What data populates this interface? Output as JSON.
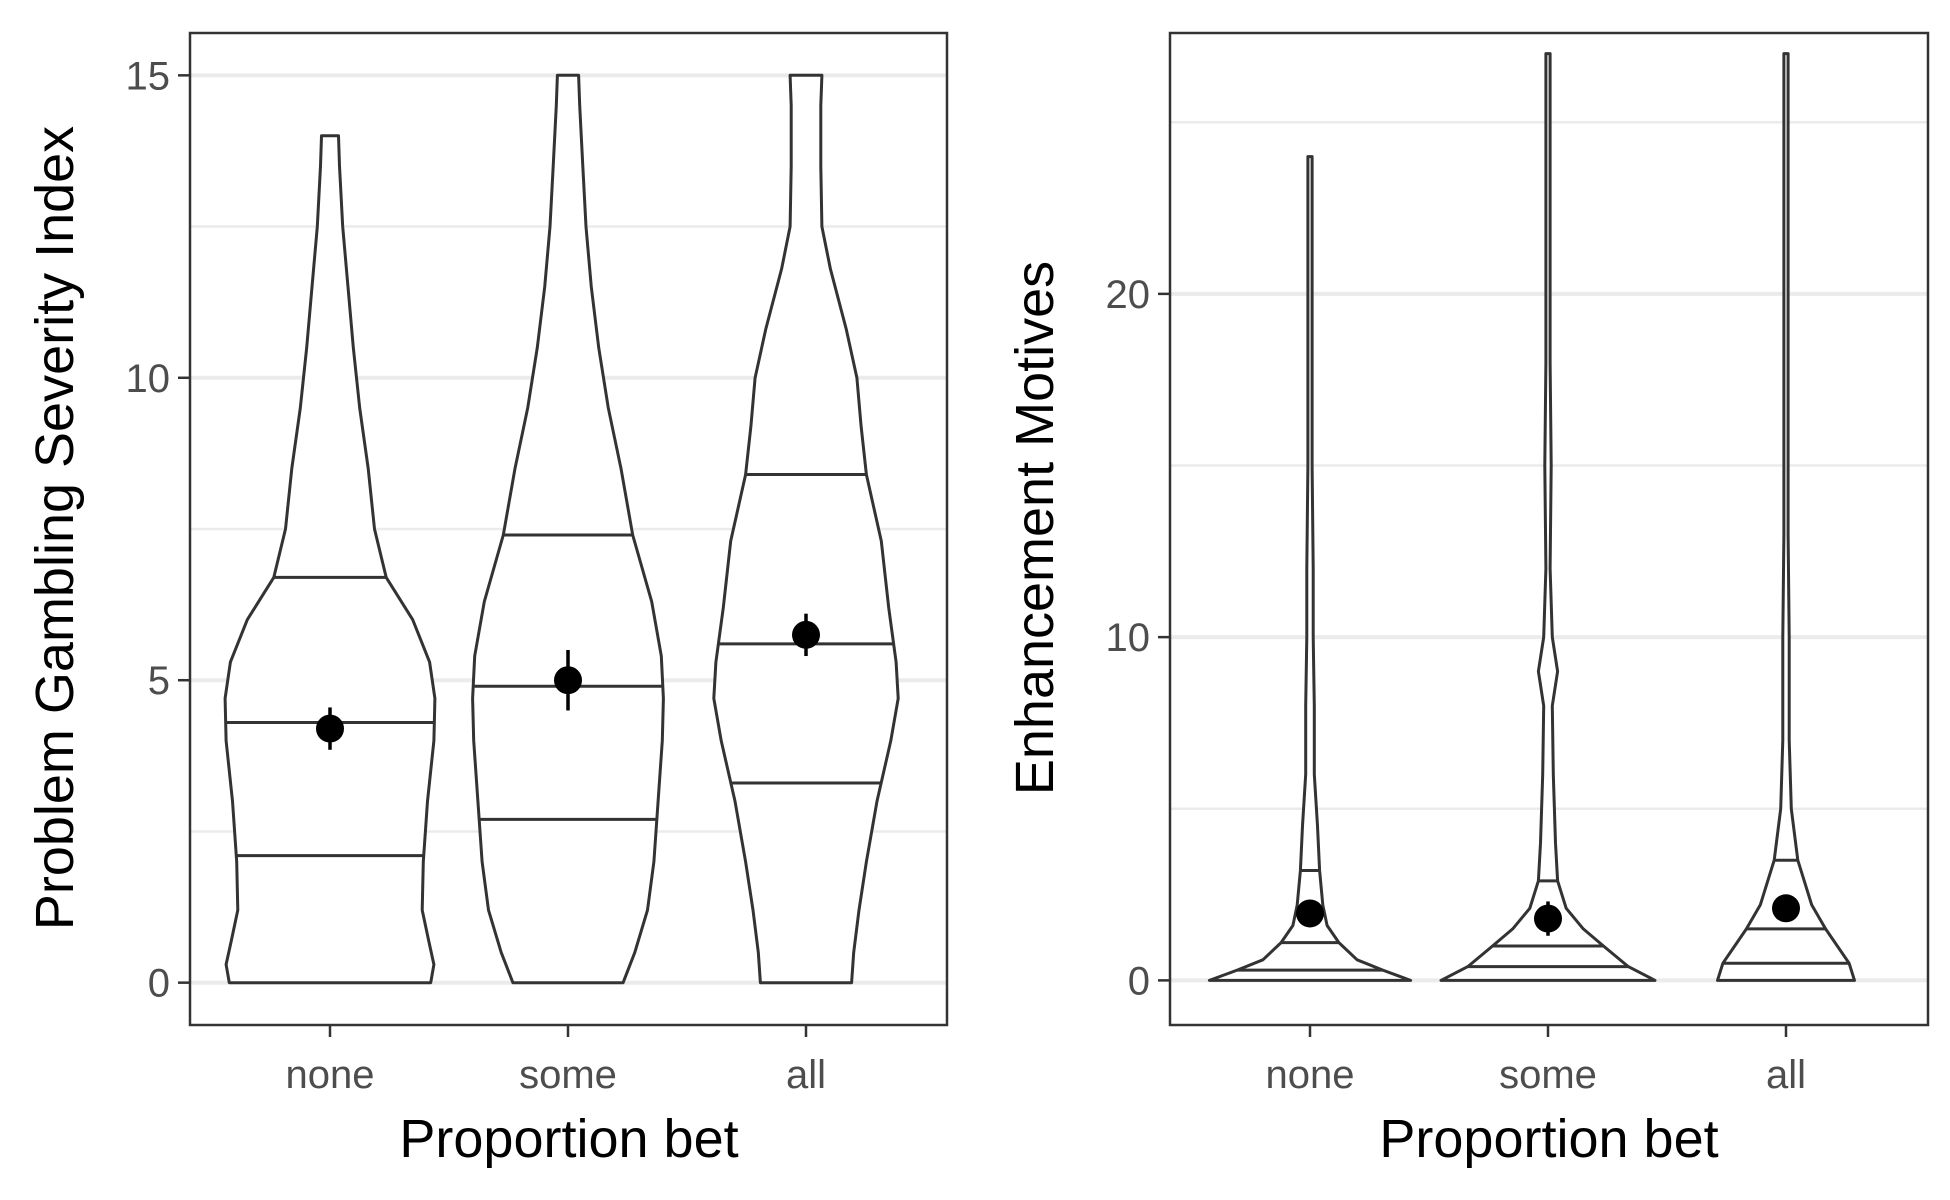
{
  "chart_data": [
    {
      "type": "violin",
      "xlabel": "Proportion bet",
      "ylabel": "Problem Gambling Severity Index",
      "categories": [
        "none",
        "some",
        "all"
      ],
      "ylim": [
        -0.7,
        15.7
      ],
      "yticks": [
        0,
        5,
        10,
        15
      ],
      "yticks_minor": [
        2.5,
        7.5,
        12.5
      ],
      "grid": true,
      "quantiles": [
        0.25,
        0.5,
        0.75
      ],
      "groups": [
        {
          "category": "none",
          "min": 0,
          "max": 14,
          "quantiles": [
            2.1,
            4.3,
            6.7
          ],
          "mean": 4.2,
          "ci": [
            3.85,
            4.55
          ],
          "density_profile": [
            [
              0,
              0.95
            ],
            [
              0.3,
              0.98
            ],
            [
              0.7,
              0.93
            ],
            [
              1.2,
              0.87
            ],
            [
              2.0,
              0.88
            ],
            [
              3.0,
              0.92
            ],
            [
              4.0,
              0.98
            ],
            [
              4.7,
              0.99
            ],
            [
              5.3,
              0.94
            ],
            [
              6.0,
              0.78
            ],
            [
              6.7,
              0.53
            ],
            [
              7.5,
              0.42
            ],
            [
              8.5,
              0.36
            ],
            [
              9.5,
              0.28
            ],
            [
              10.5,
              0.22
            ],
            [
              11.5,
              0.17
            ],
            [
              12.5,
              0.12
            ],
            [
              13.5,
              0.09
            ],
            [
              14,
              0.08
            ]
          ]
        },
        {
          "category": "some",
          "min": 0,
          "max": 15,
          "quantiles": [
            2.7,
            4.9,
            7.4
          ],
          "mean": 5.0,
          "ci": [
            4.5,
            5.5
          ],
          "density_profile": [
            [
              0,
              0.52
            ],
            [
              0.5,
              0.63
            ],
            [
              1.2,
              0.75
            ],
            [
              2.0,
              0.81
            ],
            [
              3.0,
              0.85
            ],
            [
              4.0,
              0.89
            ],
            [
              4.7,
              0.9
            ],
            [
              5.4,
              0.88
            ],
            [
              6.3,
              0.79
            ],
            [
              7.4,
              0.61
            ],
            [
              8.5,
              0.5
            ],
            [
              9.5,
              0.38
            ],
            [
              10.5,
              0.29
            ],
            [
              11.5,
              0.22
            ],
            [
              12.5,
              0.17
            ],
            [
              13.5,
              0.14
            ],
            [
              14.5,
              0.11
            ],
            [
              15,
              0.1
            ]
          ]
        },
        {
          "category": "all",
          "min": 0,
          "max": 15,
          "quantiles": [
            3.3,
            5.6,
            8.4
          ],
          "mean": 5.75,
          "ci": [
            5.4,
            6.1
          ],
          "density_profile": [
            [
              0,
              0.43
            ],
            [
              0.5,
              0.45
            ],
            [
              1.2,
              0.5
            ],
            [
              2.0,
              0.57
            ],
            [
              3.0,
              0.67
            ],
            [
              4.0,
              0.8
            ],
            [
              4.7,
              0.87
            ],
            [
              5.3,
              0.85
            ],
            [
              6.2,
              0.78
            ],
            [
              7.3,
              0.71
            ],
            [
              8.4,
              0.57
            ],
            [
              9.2,
              0.52
            ],
            [
              10.0,
              0.48
            ],
            [
              10.8,
              0.38
            ],
            [
              11.8,
              0.23
            ],
            [
              12.5,
              0.15
            ],
            [
              13.5,
              0.14
            ],
            [
              14.5,
              0.14
            ],
            [
              15,
              0.15
            ]
          ]
        }
      ]
    },
    {
      "type": "violin",
      "xlabel": "Proportion bet",
      "ylabel": "Enhancement Motives",
      "categories": [
        "none",
        "some",
        "all"
      ],
      "ylim": [
        -1.3,
        27.6
      ],
      "yticks": [
        0,
        10,
        20
      ],
      "yticks_minor": [
        5,
        15,
        25
      ],
      "grid": true,
      "quantiles": [
        0.25,
        0.5,
        0.75
      ],
      "groups": [
        {
          "category": "none",
          "min": 0,
          "max": 24,
          "quantiles": [
            0.3,
            1.1,
            3.2
          ],
          "mean": 1.95,
          "ci": [
            1.7,
            2.2
          ],
          "density_profile": [
            [
              0,
              0.94
            ],
            [
              0.3,
              0.68
            ],
            [
              0.6,
              0.44
            ],
            [
              1.1,
              0.27
            ],
            [
              1.6,
              0.16
            ],
            [
              2.2,
              0.12
            ],
            [
              3.2,
              0.09
            ],
            [
              4.5,
              0.07
            ],
            [
              6,
              0.04
            ],
            [
              8,
              0.04
            ],
            [
              10,
              0.03
            ],
            [
              12,
              0.03
            ],
            [
              15,
              0.02
            ],
            [
              18,
              0.02
            ],
            [
              21,
              0.02
            ],
            [
              24,
              0.02
            ]
          ]
        },
        {
          "category": "some",
          "min": 0,
          "max": 27,
          "quantiles": [
            0.4,
            1.0,
            2.9
          ],
          "mean": 1.8,
          "ci": [
            1.3,
            2.3
          ],
          "density_profile": [
            [
              0,
              1.0
            ],
            [
              0.4,
              0.75
            ],
            [
              1.0,
              0.52
            ],
            [
              1.5,
              0.33
            ],
            [
              2.1,
              0.17
            ],
            [
              2.9,
              0.09
            ],
            [
              4,
              0.07
            ],
            [
              6,
              0.05
            ],
            [
              8,
              0.04
            ],
            [
              9,
              0.09
            ],
            [
              10,
              0.04
            ],
            [
              12,
              0.02
            ],
            [
              15,
              0.03
            ],
            [
              18,
              0.02
            ],
            [
              21,
              0.02
            ],
            [
              24,
              0.02
            ],
            [
              27,
              0.02
            ]
          ]
        },
        {
          "category": "all",
          "min": 0,
          "max": 27,
          "quantiles": [
            0.5,
            1.5,
            3.5
          ],
          "mean": 2.1,
          "ci": [
            1.9,
            2.3
          ],
          "density_profile": [
            [
              0,
              0.64
            ],
            [
              0.5,
              0.59
            ],
            [
              1.0,
              0.48
            ],
            [
              1.5,
              0.37
            ],
            [
              2.2,
              0.24
            ],
            [
              3.5,
              0.11
            ],
            [
              5,
              0.05
            ],
            [
              7,
              0.03
            ],
            [
              10,
              0.03
            ],
            [
              13,
              0.02
            ],
            [
              16,
              0.02
            ],
            [
              20,
              0.02
            ],
            [
              24,
              0.02
            ],
            [
              27,
              0.02
            ]
          ]
        }
      ]
    }
  ]
}
